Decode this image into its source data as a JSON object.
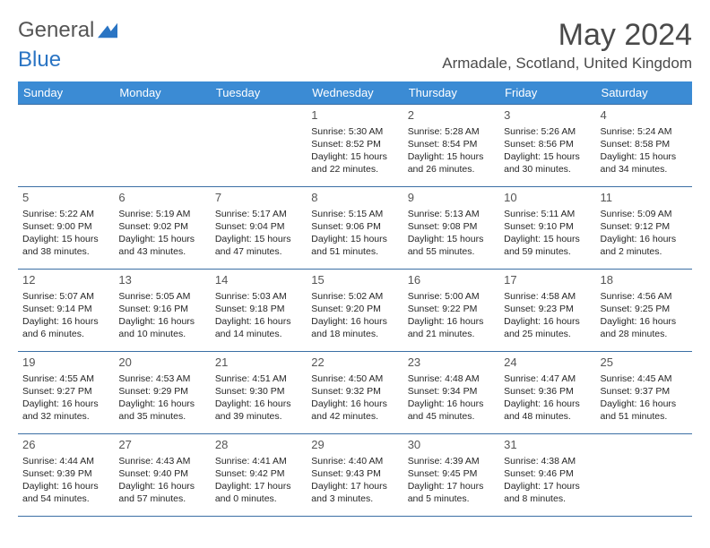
{
  "brand": {
    "part1": "General",
    "part2": "Blue"
  },
  "header": {
    "month_title": "May 2024",
    "location": "Armadale, Scotland, United Kingdom"
  },
  "style": {
    "header_bg": "#3b8bd4",
    "header_fg": "#ffffff",
    "rule": "#3b6fa4",
    "text": "#222222",
    "font_family": "Arial",
    "cell_fontsize_pt": 10.5,
    "daynum_fontsize_pt": 13,
    "title_fontsize_pt": 34
  },
  "day_headers": [
    "Sunday",
    "Monday",
    "Tuesday",
    "Wednesday",
    "Thursday",
    "Friday",
    "Saturday"
  ],
  "weeks": [
    [
      {
        "n": "",
        "t": ""
      },
      {
        "n": "",
        "t": ""
      },
      {
        "n": "",
        "t": ""
      },
      {
        "n": "1",
        "t": "Sunrise: 5:30 AM\nSunset: 8:52 PM\nDaylight: 15 hours and 22 minutes."
      },
      {
        "n": "2",
        "t": "Sunrise: 5:28 AM\nSunset: 8:54 PM\nDaylight: 15 hours and 26 minutes."
      },
      {
        "n": "3",
        "t": "Sunrise: 5:26 AM\nSunset: 8:56 PM\nDaylight: 15 hours and 30 minutes."
      },
      {
        "n": "4",
        "t": "Sunrise: 5:24 AM\nSunset: 8:58 PM\nDaylight: 15 hours and 34 minutes."
      }
    ],
    [
      {
        "n": "5",
        "t": "Sunrise: 5:22 AM\nSunset: 9:00 PM\nDaylight: 15 hours and 38 minutes."
      },
      {
        "n": "6",
        "t": "Sunrise: 5:19 AM\nSunset: 9:02 PM\nDaylight: 15 hours and 43 minutes."
      },
      {
        "n": "7",
        "t": "Sunrise: 5:17 AM\nSunset: 9:04 PM\nDaylight: 15 hours and 47 minutes."
      },
      {
        "n": "8",
        "t": "Sunrise: 5:15 AM\nSunset: 9:06 PM\nDaylight: 15 hours and 51 minutes."
      },
      {
        "n": "9",
        "t": "Sunrise: 5:13 AM\nSunset: 9:08 PM\nDaylight: 15 hours and 55 minutes."
      },
      {
        "n": "10",
        "t": "Sunrise: 5:11 AM\nSunset: 9:10 PM\nDaylight: 15 hours and 59 minutes."
      },
      {
        "n": "11",
        "t": "Sunrise: 5:09 AM\nSunset: 9:12 PM\nDaylight: 16 hours and 2 minutes."
      }
    ],
    [
      {
        "n": "12",
        "t": "Sunrise: 5:07 AM\nSunset: 9:14 PM\nDaylight: 16 hours and 6 minutes."
      },
      {
        "n": "13",
        "t": "Sunrise: 5:05 AM\nSunset: 9:16 PM\nDaylight: 16 hours and 10 minutes."
      },
      {
        "n": "14",
        "t": "Sunrise: 5:03 AM\nSunset: 9:18 PM\nDaylight: 16 hours and 14 minutes."
      },
      {
        "n": "15",
        "t": "Sunrise: 5:02 AM\nSunset: 9:20 PM\nDaylight: 16 hours and 18 minutes."
      },
      {
        "n": "16",
        "t": "Sunrise: 5:00 AM\nSunset: 9:22 PM\nDaylight: 16 hours and 21 minutes."
      },
      {
        "n": "17",
        "t": "Sunrise: 4:58 AM\nSunset: 9:23 PM\nDaylight: 16 hours and 25 minutes."
      },
      {
        "n": "18",
        "t": "Sunrise: 4:56 AM\nSunset: 9:25 PM\nDaylight: 16 hours and 28 minutes."
      }
    ],
    [
      {
        "n": "19",
        "t": "Sunrise: 4:55 AM\nSunset: 9:27 PM\nDaylight: 16 hours and 32 minutes."
      },
      {
        "n": "20",
        "t": "Sunrise: 4:53 AM\nSunset: 9:29 PM\nDaylight: 16 hours and 35 minutes."
      },
      {
        "n": "21",
        "t": "Sunrise: 4:51 AM\nSunset: 9:30 PM\nDaylight: 16 hours and 39 minutes."
      },
      {
        "n": "22",
        "t": "Sunrise: 4:50 AM\nSunset: 9:32 PM\nDaylight: 16 hours and 42 minutes."
      },
      {
        "n": "23",
        "t": "Sunrise: 4:48 AM\nSunset: 9:34 PM\nDaylight: 16 hours and 45 minutes."
      },
      {
        "n": "24",
        "t": "Sunrise: 4:47 AM\nSunset: 9:36 PM\nDaylight: 16 hours and 48 minutes."
      },
      {
        "n": "25",
        "t": "Sunrise: 4:45 AM\nSunset: 9:37 PM\nDaylight: 16 hours and 51 minutes."
      }
    ],
    [
      {
        "n": "26",
        "t": "Sunrise: 4:44 AM\nSunset: 9:39 PM\nDaylight: 16 hours and 54 minutes."
      },
      {
        "n": "27",
        "t": "Sunrise: 4:43 AM\nSunset: 9:40 PM\nDaylight: 16 hours and 57 minutes."
      },
      {
        "n": "28",
        "t": "Sunrise: 4:41 AM\nSunset: 9:42 PM\nDaylight: 17 hours and 0 minutes."
      },
      {
        "n": "29",
        "t": "Sunrise: 4:40 AM\nSunset: 9:43 PM\nDaylight: 17 hours and 3 minutes."
      },
      {
        "n": "30",
        "t": "Sunrise: 4:39 AM\nSunset: 9:45 PM\nDaylight: 17 hours and 5 minutes."
      },
      {
        "n": "31",
        "t": "Sunrise: 4:38 AM\nSunset: 9:46 PM\nDaylight: 17 hours and 8 minutes."
      },
      {
        "n": "",
        "t": ""
      }
    ]
  ]
}
